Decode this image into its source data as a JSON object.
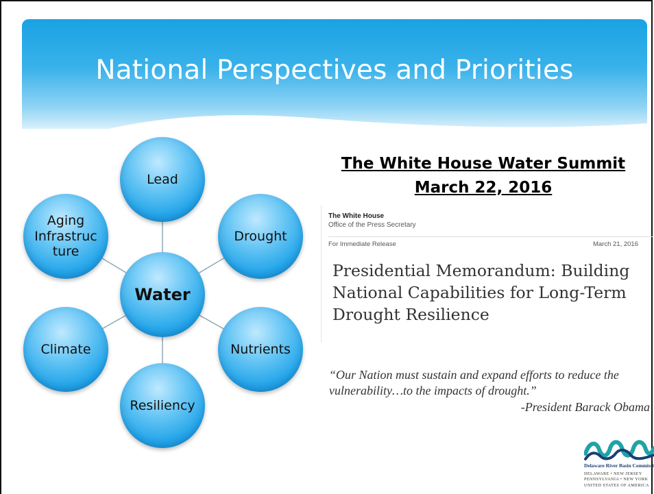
{
  "slide": {
    "title": "National Perspectives and Priorities"
  },
  "diagram": {
    "center": "Water",
    "nodes": {
      "top": "Lead",
      "upper_right": "Drought",
      "lower_right": "Nutrients",
      "bottom": "Resiliency",
      "lower_left": "Climate",
      "upper_left_lines": [
        "Aging",
        "Infrastruc",
        "ture"
      ]
    }
  },
  "summit": {
    "line1": "The White House Water Summit",
    "line2": "March 22, 2016"
  },
  "memo": {
    "org": "The White House",
    "office": "Office of the Press Secretary",
    "release": "For Immediate Release",
    "date": "March 21, 2016",
    "headline_lines": [
      "Presidential Memorandum: Building",
      "National Capabilities for Long-Term",
      "Drought Resilience"
    ]
  },
  "quote": {
    "text": "“Our Nation must sustain and expand efforts to reduce the vulnerability…to the impacts of drought.”",
    "attribution": "-President Barack Obama"
  },
  "logo": {
    "name": "Delaware River Basin Commission",
    "states_lines": [
      "DELAWARE  •  NEW JERSEY",
      "PENNSYLVANIA  •  NEW YORK",
      "UNITED STATES OF AMERICA"
    ],
    "colors": {
      "teal": "#1fa3a8",
      "navy": "#1b3f74"
    }
  },
  "colors": {
    "banner": "#19a2e4",
    "bubble": "#24a6ea"
  }
}
